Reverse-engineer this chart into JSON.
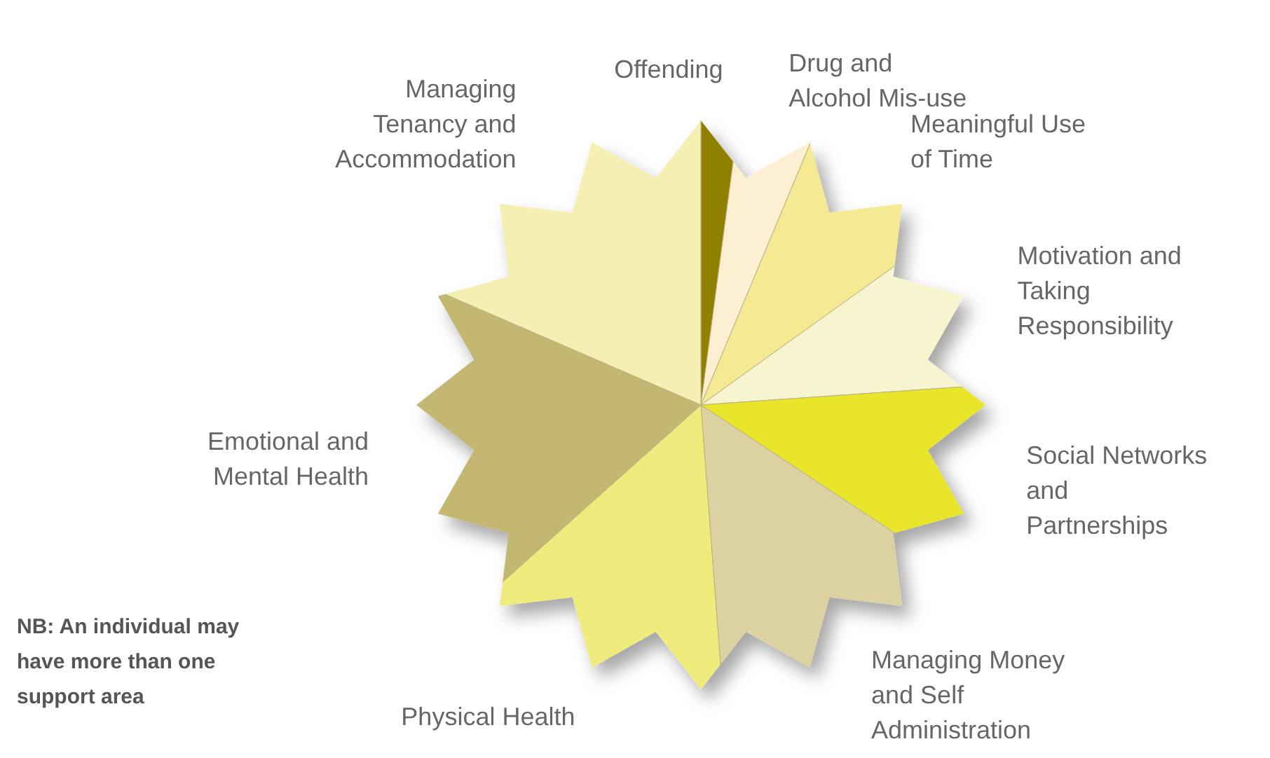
{
  "chart_data": {
    "type": "pie",
    "categories": [
      "Offending",
      "Drug and Alcohol Mis-use",
      "Meaningful Use of Time",
      "Motivation and Taking Responsibility",
      "Social Networks and Partnerships",
      "Managing Money and Self Administration",
      "Physical Health",
      "Emotional and Mental Health",
      "Managing Tenancy and Accommodation"
    ],
    "values": [
      2.1,
      4.2,
      8.8,
      8.8,
      10.4,
      14.5,
      14.6,
      18.1,
      18.5
    ],
    "colors": [
      "#8f8000",
      "#fdf0d2",
      "#f5e994",
      "#f7f5d0",
      "#e8e52a",
      "#dcd1a0",
      "#efeb7b",
      "#c4b772",
      "#f6efb3"
    ],
    "annotations": [
      "NB: An individual may have more than one support area"
    ]
  }
}
